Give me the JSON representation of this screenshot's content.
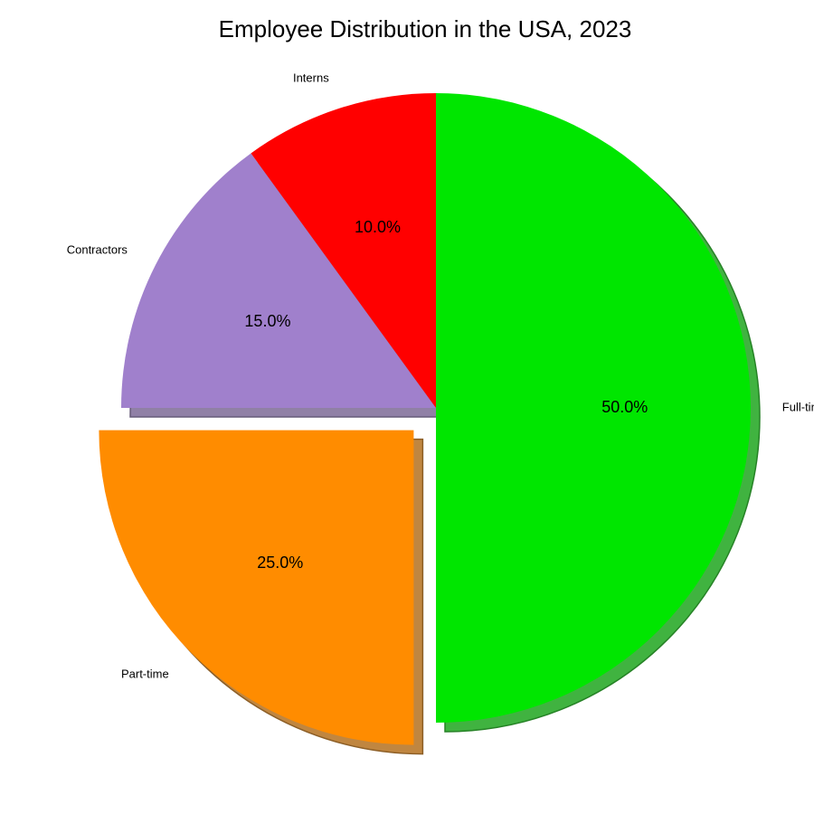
{
  "chart_data": {
    "type": "pie",
    "title": "Employee Distribution in the USA, 2023",
    "slices": [
      {
        "label": "Full-time",
        "value": 50.0,
        "percent_label": "50.0%",
        "color": "#00e600",
        "exploded": false
      },
      {
        "label": "Part-time",
        "value": 25.0,
        "percent_label": "25.0%",
        "color": "#ff8c00",
        "exploded": true
      },
      {
        "label": "Contractors",
        "value": 15.0,
        "percent_label": "15.0%",
        "color": "#a080cc",
        "exploded": false
      },
      {
        "label": "Interns",
        "value": 10.0,
        "percent_label": "10.0%",
        "color": "#ff0000",
        "exploded": false
      }
    ],
    "start_angle": "top",
    "direction": "clockwise",
    "shadow": true
  }
}
